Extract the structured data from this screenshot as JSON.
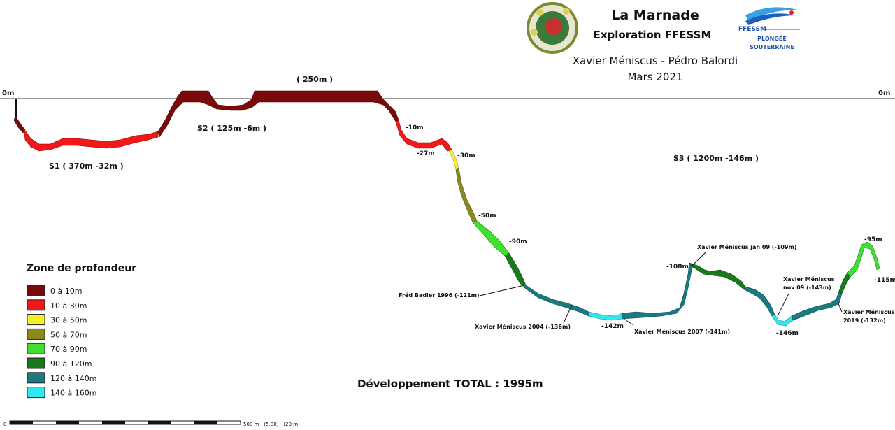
{
  "header": {
    "title": "La Marnade",
    "subtitle": "Exploration FFESSM",
    "authors": "Xavier Méniscus - Pédro Balordi",
    "date": "Mars 2021",
    "logo_text": "FFESSM",
    "logo_caption_1": "PLONGÉE",
    "logo_caption_2": "SOUTERRAINE"
  },
  "surface": {
    "left_label": "0m",
    "right_label": "0m"
  },
  "sections": {
    "s1": "S1 ( 370m -32m )",
    "s2": "S2 ( 125m -6m )",
    "top": "( 250m )",
    "s3": "S3 ( 1200m -146m )"
  },
  "depth_labels": {
    "d10": "-10m",
    "d27": "-27m",
    "d30": "-30m",
    "d50": "-50m",
    "d90": "-90m",
    "d108": "-108m",
    "d142": "-142m",
    "d146": "-146m",
    "d95": "-95m",
    "d115": "-115m"
  },
  "annotations": {
    "fred": "Fréd Badier 1996 (-121m)",
    "xm2004": "Xavier Méniscus 2004 (-136m)",
    "xm2007": "Xavier Méniscus 2007 (-141m)",
    "xmjan": "Xavier Méniscus jan 09 (-109m)",
    "xmnov_1": "Xavier Méniscus",
    "xmnov_2": "nov 09 (-143m)",
    "xm2019_1": "Xavier Méniscus",
    "xm2019_2": "2019 (-132m)"
  },
  "legend": {
    "title": "Zone de profondeur",
    "items": [
      {
        "label": "0 à 10m",
        "color": "#7a0a0a"
      },
      {
        "label": "10 à 30m",
        "color": "#f01818"
      },
      {
        "label": "30 à 50m",
        "color": "#f5f02a"
      },
      {
        "label": "50 à 70m",
        "color": "#8a8a18"
      },
      {
        "label": "70 à 90m",
        "color": "#40e030"
      },
      {
        "label": "90 à 120m",
        "color": "#1a7a1a"
      },
      {
        "label": "120 à 140m",
        "color": "#1a7a80"
      },
      {
        "label": "140 à 160m",
        "color": "#30e8f0"
      }
    ]
  },
  "total": "Développement TOTAL : 1995m",
  "scale_bar": {
    "zero": "0",
    "text": "500 m - (5.00) - (20 m)"
  }
}
